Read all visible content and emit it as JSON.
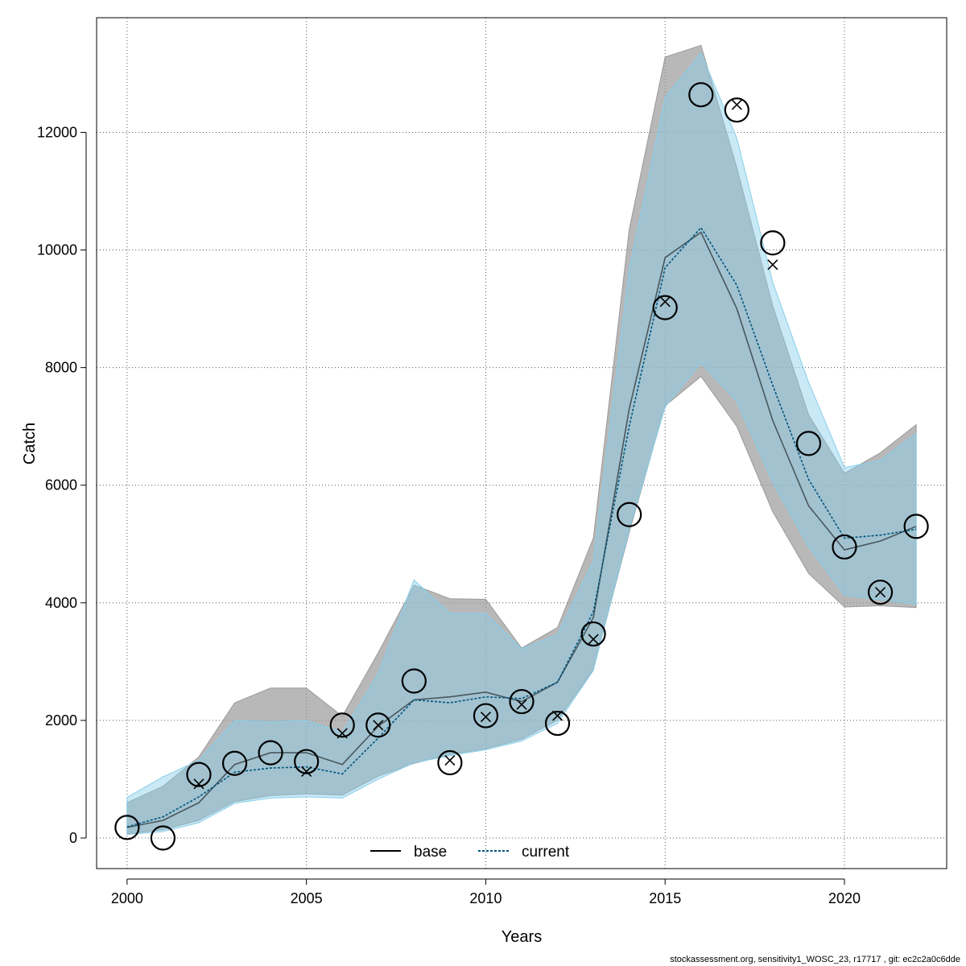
{
  "chart_data": {
    "type": "line",
    "xlabel": "Years",
    "ylabel": "Catch",
    "xlim": [
      1999.15,
      2022.85
    ],
    "ylim": [
      -520,
      13950
    ],
    "x_ticks": [
      2000,
      2005,
      2010,
      2015,
      2020
    ],
    "y_ticks": [
      0,
      2000,
      4000,
      6000,
      8000,
      10000,
      12000
    ],
    "grid": true,
    "legend_placement": "bottom",
    "x": [
      2000,
      2001,
      2002,
      2003,
      2004,
      2005,
      2006,
      2007,
      2008,
      2009,
      2010,
      2011,
      2012,
      2013,
      2014,
      2015,
      2016,
      2017,
      2018,
      2019,
      2020,
      2021,
      2022
    ],
    "series": [
      {
        "name": "base",
        "color": "#000000",
        "line_style": "solid",
        "band_color": "#9a9a9a",
        "values": [
          180,
          300,
          600,
          1250,
          1450,
          1450,
          1250,
          1900,
          2350,
          2400,
          2480,
          2320,
          2650,
          3750,
          7300,
          9870,
          10300,
          9000,
          7100,
          5650,
          4900,
          5050,
          5300
        ],
        "lower": [
          70,
          140,
          300,
          620,
          720,
          750,
          730,
          1050,
          1270,
          1420,
          1520,
          1680,
          2000,
          2870,
          5200,
          7350,
          7850,
          7000,
          5550,
          4500,
          3930,
          3950,
          3920
        ],
        "upper": [
          600,
          880,
          1380,
          2300,
          2550,
          2550,
          2070,
          3150,
          4300,
          4070,
          4060,
          3230,
          3580,
          5100,
          10350,
          13280,
          13480,
          11400,
          9050,
          7200,
          6200,
          6550,
          7030
        ]
      },
      {
        "name": "current",
        "color": "#00557f",
        "line_style": "dotted",
        "band_color": "#87ceeb",
        "values": [
          190,
          360,
          700,
          1120,
          1190,
          1210,
          1090,
          1700,
          2350,
          2300,
          2400,
          2370,
          2650,
          3850,
          7000,
          9700,
          10380,
          9400,
          7700,
          6100,
          5100,
          5150,
          5250
        ],
        "lower": [
          60,
          110,
          260,
          590,
          680,
          700,
          680,
          1000,
          1280,
          1400,
          1500,
          1650,
          1950,
          2850,
          5250,
          7330,
          8080,
          7420,
          6050,
          4950,
          4130,
          4050,
          3980
        ],
        "upper": [
          690,
          1040,
          1320,
          2000,
          1980,
          2000,
          1800,
          2800,
          4390,
          3820,
          3820,
          3220,
          3460,
          4720,
          9680,
          12600,
          13350,
          11900,
          9450,
          7750,
          6300,
          6420,
          6880
        ]
      }
    ],
    "observed": {
      "marker": "open-circle",
      "values": [
        180,
        0,
        1080,
        1270,
        1450,
        1300,
        1920,
        1920,
        2670,
        1280,
        2080,
        2320,
        1950,
        3470,
        5500,
        9020,
        12640,
        12380,
        10120,
        6710,
        4950,
        4180,
        5300
      ]
    },
    "expected": {
      "marker": "x",
      "values": [
        null,
        null,
        920,
        null,
        null,
        1130,
        1780,
        1920,
        null,
        1320,
        2060,
        2270,
        2080,
        3380,
        null,
        9120,
        null,
        12470,
        9750,
        null,
        null,
        4180,
        null
      ]
    }
  },
  "footer": "stockassessment.org, sensitivity1_WOSC_23, r17717 , git: ec2c2a0c6dde"
}
